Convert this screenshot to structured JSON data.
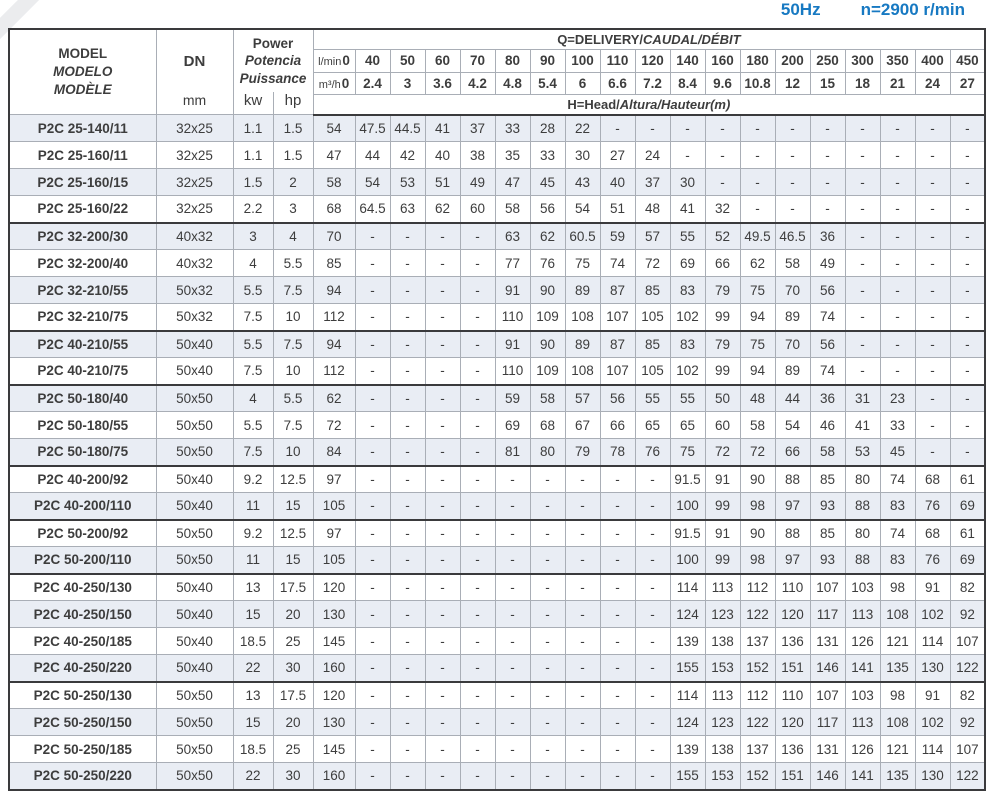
{
  "header": {
    "frequency": "50Hz",
    "speed": "n=2900 r/min"
  },
  "colors": {
    "accent_blue": "#1779c2",
    "row_shade": "#e9edf4",
    "border_dark": "#3a3a3c",
    "border_light": "#a9aeb6"
  },
  "table": {
    "model": {
      "l1": "MODEL",
      "l2": "MODELO",
      "l3": "MODÈLE"
    },
    "dn": {
      "label": "DN",
      "unit": "mm"
    },
    "power": {
      "l1": "Power",
      "l2": "Potencia",
      "l3": "Puissance",
      "kw": "kw",
      "hp": "hp"
    },
    "q_header": {
      "plain": "Q=DELIVERY/",
      "italic": "CAUDAL/DÉBIT"
    },
    "h_header": {
      "plain": "H=Head/",
      "italic": "Altura/Hauteur(m)"
    },
    "lmin_label": "l/min",
    "m3h_label": "m³/h",
    "lmin_values": [
      "0",
      "40",
      "50",
      "60",
      "70",
      "80",
      "90",
      "100",
      "110",
      "120",
      "140",
      "160",
      "180",
      "200",
      "250",
      "300",
      "350",
      "400",
      "450"
    ],
    "m3h_values": [
      "0",
      "2.4",
      "3",
      "3.6",
      "4.2",
      "4.8",
      "5.4",
      "6",
      "6.6",
      "7.2",
      "8.4",
      "9.6",
      "10.8",
      "12",
      "15",
      "18",
      "21",
      "24",
      "27"
    ],
    "rows": [
      {
        "model": "P2C 25-140/11",
        "dn": "32x25",
        "kw": "1.1",
        "hp": "1.5",
        "heads": [
          "54",
          "47.5",
          "44.5",
          "41",
          "37",
          "33",
          "28",
          "22",
          "-",
          "-",
          "-",
          "-",
          "-",
          "-",
          "-",
          "-",
          "-",
          "-",
          "-"
        ],
        "group_end": false
      },
      {
        "model": "P2C 25-160/11",
        "dn": "32x25",
        "kw": "1.1",
        "hp": "1.5",
        "heads": [
          "47",
          "44",
          "42",
          "40",
          "38",
          "35",
          "33",
          "30",
          "27",
          "24",
          "-",
          "-",
          "-",
          "-",
          "-",
          "-",
          "-",
          "-",
          "-"
        ],
        "group_end": false
      },
      {
        "model": "P2C 25-160/15",
        "dn": "32x25",
        "kw": "1.5",
        "hp": "2",
        "heads": [
          "58",
          "54",
          "53",
          "51",
          "49",
          "47",
          "45",
          "43",
          "40",
          "37",
          "30",
          "-",
          "-",
          "-",
          "-",
          "-",
          "-",
          "-",
          "-"
        ],
        "group_end": false
      },
      {
        "model": "P2C 25-160/22",
        "dn": "32x25",
        "kw": "2.2",
        "hp": "3",
        "heads": [
          "68",
          "64.5",
          "63",
          "62",
          "60",
          "58",
          "56",
          "54",
          "51",
          "48",
          "41",
          "32",
          "-",
          "-",
          "-",
          "-",
          "-",
          "-",
          "-"
        ],
        "group_end": true
      },
      {
        "model": "P2C 32-200/30",
        "dn": "40x32",
        "kw": "3",
        "hp": "4",
        "heads": [
          "70",
          "-",
          "-",
          "-",
          "-",
          "63",
          "62",
          "60.5",
          "59",
          "57",
          "55",
          "52",
          "49.5",
          "46.5",
          "36",
          "-",
          "-",
          "-",
          "-"
        ],
        "group_end": false
      },
      {
        "model": "P2C 32-200/40",
        "dn": "40x32",
        "kw": "4",
        "hp": "5.5",
        "heads": [
          "85",
          "-",
          "-",
          "-",
          "-",
          "77",
          "76",
          "75",
          "74",
          "72",
          "69",
          "66",
          "62",
          "58",
          "49",
          "-",
          "-",
          "-",
          "-"
        ],
        "group_end": false
      },
      {
        "model": "P2C 32-210/55",
        "dn": "50x32",
        "kw": "5.5",
        "hp": "7.5",
        "heads": [
          "94",
          "-",
          "-",
          "-",
          "-",
          "91",
          "90",
          "89",
          "87",
          "85",
          "83",
          "79",
          "75",
          "70",
          "56",
          "-",
          "-",
          "-",
          "-"
        ],
        "group_end": false
      },
      {
        "model": "P2C 32-210/75",
        "dn": "50x32",
        "kw": "7.5",
        "hp": "10",
        "heads": [
          "112",
          "-",
          "-",
          "-",
          "-",
          "110",
          "109",
          "108",
          "107",
          "105",
          "102",
          "99",
          "94",
          "89",
          "74",
          "-",
          "-",
          "-",
          "-"
        ],
        "group_end": true
      },
      {
        "model": "P2C 40-210/55",
        "dn": "50x40",
        "kw": "5.5",
        "hp": "7.5",
        "heads": [
          "94",
          "-",
          "-",
          "-",
          "-",
          "91",
          "90",
          "89",
          "87",
          "85",
          "83",
          "79",
          "75",
          "70",
          "56",
          "-",
          "-",
          "-",
          "-"
        ],
        "group_end": false
      },
      {
        "model": "P2C 40-210/75",
        "dn": "50x40",
        "kw": "7.5",
        "hp": "10",
        "heads": [
          "112",
          "-",
          "-",
          "-",
          "-",
          "110",
          "109",
          "108",
          "107",
          "105",
          "102",
          "99",
          "94",
          "89",
          "74",
          "-",
          "-",
          "-",
          "-"
        ],
        "group_end": true
      },
      {
        "model": "P2C 50-180/40",
        "dn": "50x50",
        "kw": "4",
        "hp": "5.5",
        "heads": [
          "62",
          "-",
          "-",
          "-",
          "-",
          "59",
          "58",
          "57",
          "56",
          "55",
          "55",
          "50",
          "48",
          "44",
          "36",
          "31",
          "23",
          "-",
          "-"
        ],
        "group_end": false
      },
      {
        "model": "P2C 50-180/55",
        "dn": "50x50",
        "kw": "5.5",
        "hp": "7.5",
        "heads": [
          "72",
          "-",
          "-",
          "-",
          "-",
          "69",
          "68",
          "67",
          "66",
          "65",
          "65",
          "60",
          "58",
          "54",
          "46",
          "41",
          "33",
          "-",
          "-"
        ],
        "group_end": false
      },
      {
        "model": "P2C 50-180/75",
        "dn": "50x50",
        "kw": "7.5",
        "hp": "10",
        "heads": [
          "84",
          "-",
          "-",
          "-",
          "-",
          "81",
          "80",
          "79",
          "78",
          "76",
          "75",
          "72",
          "72",
          "66",
          "58",
          "53",
          "45",
          "-",
          "-"
        ],
        "group_end": true
      },
      {
        "model": "P2C 40-200/92",
        "dn": "50x40",
        "kw": "9.2",
        "hp": "12.5",
        "heads": [
          "97",
          "-",
          "-",
          "-",
          "-",
          "-",
          "-",
          "-",
          "-",
          "-",
          "91.5",
          "91",
          "90",
          "88",
          "85",
          "80",
          "74",
          "68",
          "61"
        ],
        "group_end": false
      },
      {
        "model": "P2C 40-200/110",
        "dn": "50x40",
        "kw": "11",
        "hp": "15",
        "heads": [
          "105",
          "-",
          "-",
          "-",
          "-",
          "-",
          "-",
          "-",
          "-",
          "-",
          "100",
          "99",
          "98",
          "97",
          "93",
          "88",
          "83",
          "76",
          "69"
        ],
        "group_end": true
      },
      {
        "model": "P2C 50-200/92",
        "dn": "50x50",
        "kw": "9.2",
        "hp": "12.5",
        "heads": [
          "97",
          "-",
          "-",
          "-",
          "-",
          "-",
          "-",
          "-",
          "-",
          "-",
          "91.5",
          "91",
          "90",
          "88",
          "85",
          "80",
          "74",
          "68",
          "61"
        ],
        "group_end": false
      },
      {
        "model": "P2C 50-200/110",
        "dn": "50x50",
        "kw": "11",
        "hp": "15",
        "heads": [
          "105",
          "-",
          "-",
          "-",
          "-",
          "-",
          "-",
          "-",
          "-",
          "-",
          "100",
          "99",
          "98",
          "97",
          "93",
          "88",
          "83",
          "76",
          "69"
        ],
        "group_end": true
      },
      {
        "model": "P2C 40-250/130",
        "dn": "50x40",
        "kw": "13",
        "hp": "17.5",
        "heads": [
          "120",
          "-",
          "-",
          "-",
          "-",
          "-",
          "-",
          "-",
          "-",
          "-",
          "114",
          "113",
          "112",
          "110",
          "107",
          "103",
          "98",
          "91",
          "82"
        ],
        "group_end": false
      },
      {
        "model": "P2C 40-250/150",
        "dn": "50x40",
        "kw": "15",
        "hp": "20",
        "heads": [
          "130",
          "-",
          "-",
          "-",
          "-",
          "-",
          "-",
          "-",
          "-",
          "-",
          "124",
          "123",
          "122",
          "120",
          "117",
          "113",
          "108",
          "102",
          "92"
        ],
        "group_end": false
      },
      {
        "model": "P2C 40-250/185",
        "dn": "50x40",
        "kw": "18.5",
        "hp": "25",
        "heads": [
          "145",
          "-",
          "-",
          "-",
          "-",
          "-",
          "-",
          "-",
          "-",
          "-",
          "139",
          "138",
          "137",
          "136",
          "131",
          "126",
          "121",
          "114",
          "107"
        ],
        "group_end": false
      },
      {
        "model": "P2C 40-250/220",
        "dn": "50x40",
        "kw": "22",
        "hp": "30",
        "heads": [
          "160",
          "-",
          "-",
          "-",
          "-",
          "-",
          "-",
          "-",
          "-",
          "-",
          "155",
          "153",
          "152",
          "151",
          "146",
          "141",
          "135",
          "130",
          "122"
        ],
        "group_end": true
      },
      {
        "model": "P2C 50-250/130",
        "dn": "50x50",
        "kw": "13",
        "hp": "17.5",
        "heads": [
          "120",
          "-",
          "-",
          "-",
          "-",
          "-",
          "-",
          "-",
          "-",
          "-",
          "114",
          "113",
          "112",
          "110",
          "107",
          "103",
          "98",
          "91",
          "82"
        ],
        "group_end": false
      },
      {
        "model": "P2C 50-250/150",
        "dn": "50x50",
        "kw": "15",
        "hp": "20",
        "heads": [
          "130",
          "-",
          "-",
          "-",
          "-",
          "-",
          "-",
          "-",
          "-",
          "-",
          "124",
          "123",
          "122",
          "120",
          "117",
          "113",
          "108",
          "102",
          "92"
        ],
        "group_end": false
      },
      {
        "model": "P2C 50-250/185",
        "dn": "50x50",
        "kw": "18.5",
        "hp": "25",
        "heads": [
          "145",
          "-",
          "-",
          "-",
          "-",
          "-",
          "-",
          "-",
          "-",
          "-",
          "139",
          "138",
          "137",
          "136",
          "131",
          "126",
          "121",
          "114",
          "107"
        ],
        "group_end": false
      },
      {
        "model": "P2C 50-250/220",
        "dn": "50x50",
        "kw": "22",
        "hp": "30",
        "heads": [
          "160",
          "-",
          "-",
          "-",
          "-",
          "-",
          "-",
          "-",
          "-",
          "-",
          "155",
          "153",
          "152",
          "151",
          "146",
          "141",
          "135",
          "130",
          "122"
        ],
        "group_end": false
      }
    ]
  }
}
